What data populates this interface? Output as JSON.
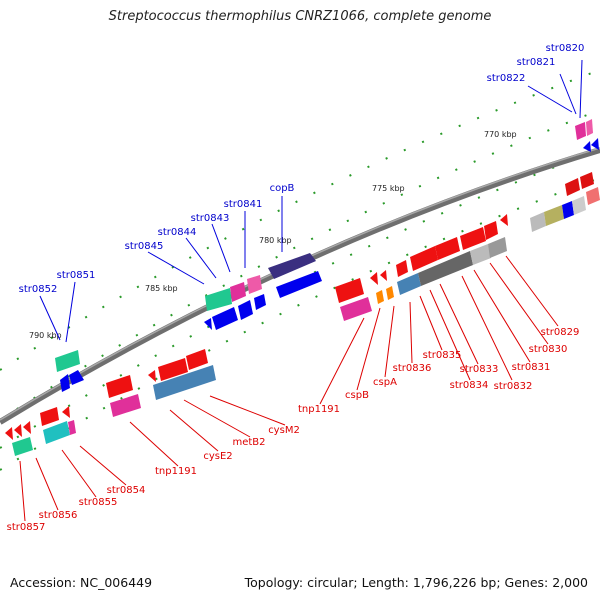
{
  "title": "Streptococcus thermophilus CNRZ1066, complete genome",
  "footer": {
    "accession": "Accession: NC_006449",
    "summary": "Topology: circular; Length: 1,796,226 bp; Genes: 2,000"
  },
  "colors": {
    "top_label": "#0000cc",
    "bottom_label": "#dd0000",
    "backbone": "#777777"
  },
  "kbp_ticks": [
    {
      "label": "770 kbp"
    },
    {
      "label": "775 kbp"
    },
    {
      "label": "780 kbp"
    },
    {
      "label": "785 kbp"
    },
    {
      "label": "790 kbp"
    }
  ],
  "top_genes": [
    {
      "name": "str0820"
    },
    {
      "name": "str0821"
    },
    {
      "name": "str0822"
    },
    {
      "name": "copB"
    },
    {
      "name": "str0841"
    },
    {
      "name": "str0843"
    },
    {
      "name": "str0844"
    },
    {
      "name": "str0845"
    },
    {
      "name": "str0851"
    },
    {
      "name": "str0852"
    }
  ],
  "bottom_genes": [
    {
      "name": "str0829"
    },
    {
      "name": "str0830"
    },
    {
      "name": "str0831"
    },
    {
      "name": "str0832"
    },
    {
      "name": "str0833"
    },
    {
      "name": "str0834"
    },
    {
      "name": "str0835"
    },
    {
      "name": "str0836"
    },
    {
      "name": "cspA"
    },
    {
      "name": "cspB"
    },
    {
      "name": "tnp1191"
    },
    {
      "name": "cysM2"
    },
    {
      "name": "metB2"
    },
    {
      "name": "cysE2"
    },
    {
      "name": "tnp1191"
    },
    {
      "name": "str0854"
    },
    {
      "name": "str0855"
    },
    {
      "name": "str0856"
    },
    {
      "name": "str0857"
    }
  ]
}
